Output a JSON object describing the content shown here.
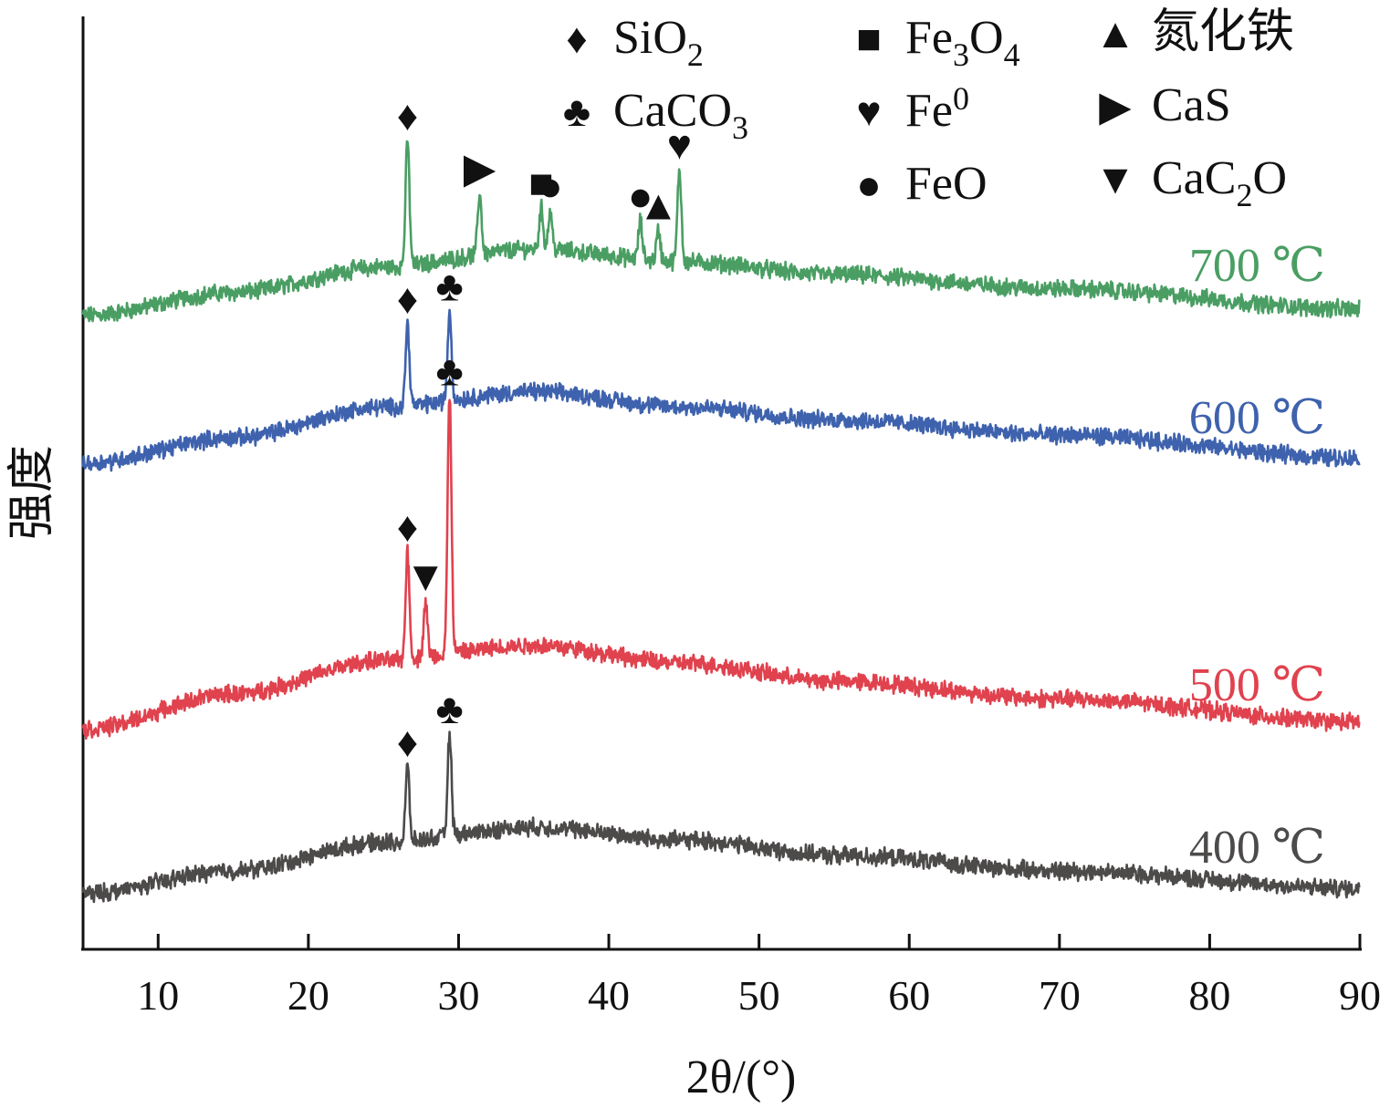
{
  "chart_data": {
    "type": "line",
    "title": "",
    "xlabel": "2θ/(°)",
    "ylabel": "强度",
    "xlim": [
      5,
      90
    ],
    "x_ticks": [
      10,
      20,
      30,
      40,
      50,
      60,
      70,
      80,
      90
    ],
    "y_axis_numeric_labels": false,
    "grid": false,
    "legend": {
      "placement": "top",
      "entries": [
        {
          "symbol": "♦",
          "text": "SiO",
          "sub": "2",
          "sup": ""
        },
        {
          "symbol": "♣",
          "text": "CaCO",
          "sub": "3",
          "sup": ""
        },
        {
          "symbol": "■",
          "text": "Fe",
          "sub": "3",
          "text2": "O",
          "sub2": "4",
          "sup": ""
        },
        {
          "symbol": "♥",
          "text": "Fe",
          "sub": "",
          "sup": "0"
        },
        {
          "symbol": "●",
          "text": "FeO",
          "sub": "",
          "sup": ""
        },
        {
          "symbol": "▲",
          "text": "氮化铁",
          "sub": "",
          "sup": ""
        },
        {
          "symbol": "▶",
          "text": "CaS",
          "sub": "",
          "sup": ""
        },
        {
          "symbol": "▼",
          "text": "CaC",
          "sub": "2",
          "text2": "O",
          "sub2": "",
          "sup": ""
        }
      ]
    },
    "series": [
      {
        "name": "700 ℃",
        "color": "#4a9e63",
        "baseline": [
          [
            5,
            0.0
          ],
          [
            15,
            0.9
          ],
          [
            25,
            1.9
          ],
          [
            35,
            2.6
          ],
          [
            45,
            2.1
          ],
          [
            55,
            1.6
          ],
          [
            70,
            1.05
          ],
          [
            90,
            0.25
          ]
        ],
        "peaks": [
          {
            "x": 26.6,
            "height": 4.9,
            "symbol": "♦"
          },
          {
            "x": 31.4,
            "height": 2.4,
            "symbol": "▶"
          },
          {
            "x": 35.5,
            "height": 1.6,
            "symbol": "■"
          },
          {
            "x": 36.1,
            "height": 1.5,
            "symbol": "●"
          },
          {
            "x": 42.1,
            "height": 1.5,
            "symbol": "●"
          },
          {
            "x": 43.3,
            "height": 1.2,
            "symbol": "▲"
          },
          {
            "x": 44.7,
            "height": 3.6,
            "symbol": "♥"
          }
        ]
      },
      {
        "name": "600 ℃",
        "color": "#3e62ad",
        "baseline": [
          [
            5,
            0.0
          ],
          [
            15,
            1.0
          ],
          [
            25,
            2.2
          ],
          [
            35,
            2.8
          ],
          [
            45,
            2.2
          ],
          [
            55,
            1.7
          ],
          [
            70,
            1.1
          ],
          [
            90,
            0.2
          ]
        ],
        "peaks": [
          {
            "x": 26.6,
            "height": 3.2,
            "symbol": "♦"
          },
          {
            "x": 29.4,
            "height": 3.5,
            "symbol": "♣"
          }
        ]
      },
      {
        "name": "500 ℃",
        "color": "#e0424e",
        "baseline": [
          [
            5,
            0.0
          ],
          [
            15,
            1.4
          ],
          [
            25,
            2.7
          ],
          [
            35,
            3.3
          ],
          [
            45,
            2.6
          ],
          [
            55,
            1.9
          ],
          [
            70,
            1.2
          ],
          [
            90,
            0.3
          ]
        ],
        "peaks": [
          {
            "x": 26.6,
            "height": 4.2,
            "symbol": "♦"
          },
          {
            "x": 27.8,
            "height": 2.2,
            "symbol": "▼"
          },
          {
            "x": 29.4,
            "height": 10.1,
            "symbol": "♣"
          }
        ]
      },
      {
        "name": "400 ℃",
        "color": "#4d4a4a",
        "baseline": [
          [
            5,
            0.0
          ],
          [
            15,
            0.9
          ],
          [
            25,
            2.0
          ],
          [
            35,
            2.6
          ],
          [
            45,
            2.1
          ],
          [
            55,
            1.5
          ],
          [
            70,
            0.9
          ],
          [
            90,
            0.2
          ]
        ],
        "peaks": [
          {
            "x": 26.6,
            "height": 2.9,
            "symbol": "♦"
          },
          {
            "x": 29.4,
            "height": 4.0,
            "symbol": "♣"
          }
        ]
      }
    ]
  }
}
